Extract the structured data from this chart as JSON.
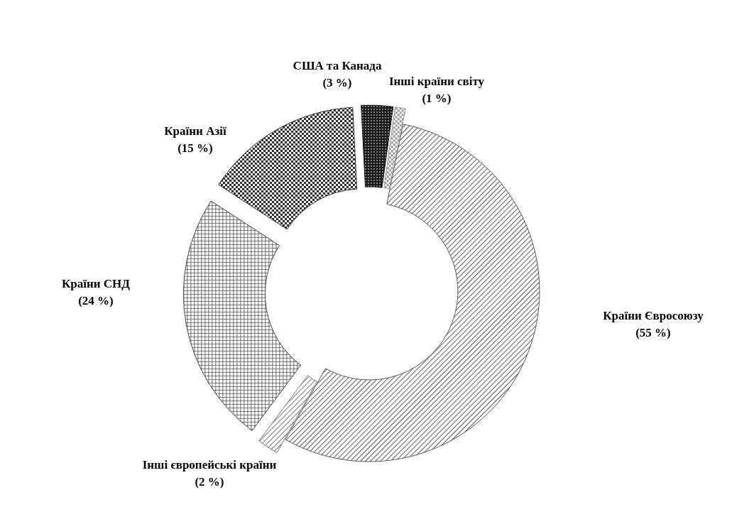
{
  "chart_data": {
    "type": "donut",
    "categories": [
      "Країни Євросоюзу",
      "Інші європейські країни",
      "Країни СНД",
      "Країни Азії",
      "США та Канада",
      "Інші країни світу"
    ],
    "values": [
      55,
      2,
      24,
      15,
      3,
      1
    ],
    "value_labels": [
      "(55 %)",
      "(2 %)",
      "(24 %)",
      "(15 %)",
      "(3 %)",
      "(1 %)"
    ],
    "colors": [
      "#5a5a5a",
      "#7a7a7a",
      "#4a4a4a",
      "#2a2a2a",
      "#1a1a1a",
      "#9a9a9a"
    ]
  }
}
